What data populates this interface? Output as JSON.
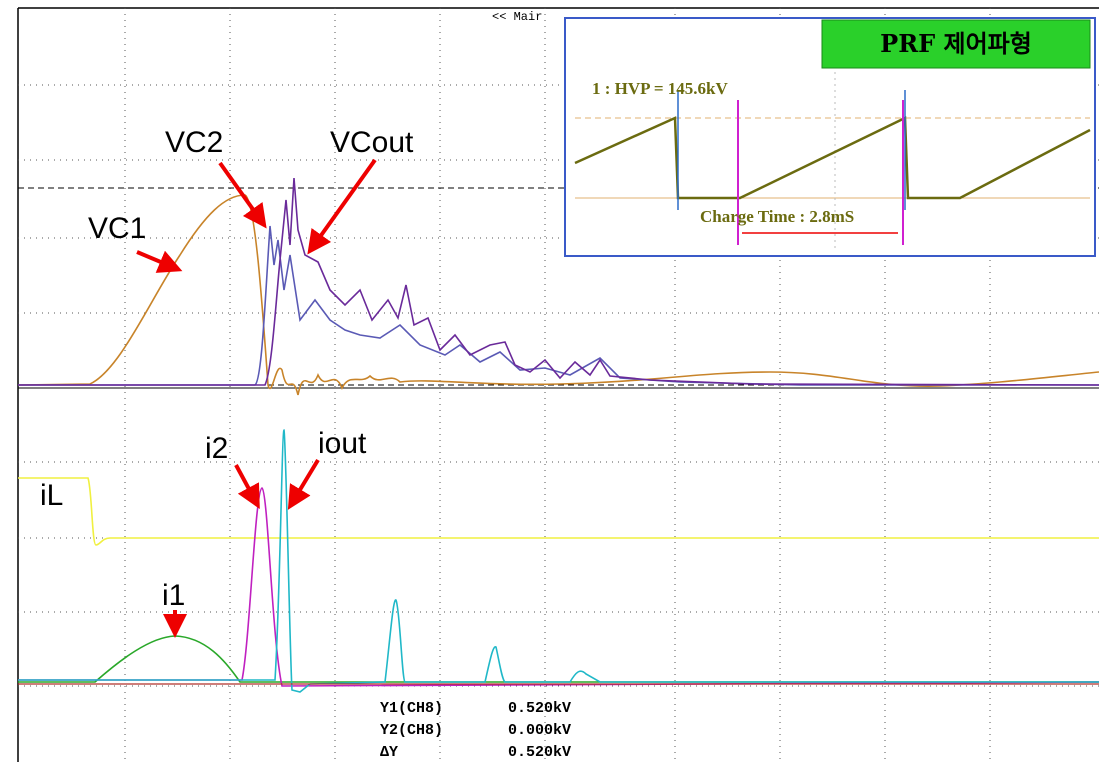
{
  "header": {
    "menu": "<< Mair"
  },
  "labels": {
    "vc1": "VC1",
    "vc2": "VC2",
    "vcout": "VCout",
    "i1": "i1",
    "i2": "i2",
    "iout": "iout",
    "il": "iL"
  },
  "inset": {
    "title": "PRF 제어파형",
    "measure": "1 : HVP = 145.6kV",
    "charge": "Charge Time : 2.8mS"
  },
  "readout": {
    "rows": [
      [
        "Y1(CH8)",
        "0.520kV"
      ],
      [
        "Y2(CH8)",
        "0.000kV"
      ],
      [
        "ΔY",
        "0.520kV"
      ]
    ]
  }
}
